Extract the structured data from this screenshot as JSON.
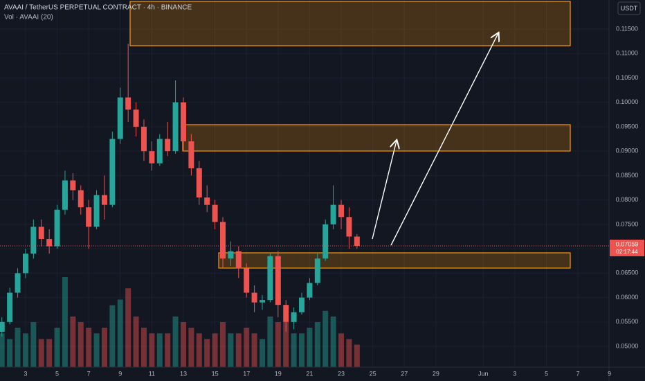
{
  "chart_data": {
    "type": "candlestick",
    "title": "AVAAI / TetherUS PERPETUAL CONTRACT · 4h · BINANCE",
    "volume_title": "Vol · AVAAI (20)",
    "currency": "USDT",
    "x": [
      1.5,
      2,
      2.5,
      3,
      3.5,
      4,
      4.5,
      5,
      5.5,
      6,
      6.5,
      7,
      7.5,
      8,
      8.5,
      9,
      9.5,
      10,
      10.5,
      11,
      11.5,
      12,
      12.5,
      13,
      13.5,
      14,
      14.5,
      15,
      15.5,
      16,
      16.5,
      17,
      17.5,
      18,
      18.5,
      19,
      19.5,
      20,
      20.5,
      21,
      21.5,
      22,
      22.5,
      23,
      23.5,
      24
    ],
    "open": [
      0.053,
      0.055,
      0.061,
      0.065,
      0.069,
      0.0745,
      0.072,
      0.0705,
      0.078,
      0.084,
      0.082,
      0.0785,
      0.0745,
      0.081,
      0.079,
      0.0925,
      0.101,
      0.0985,
      0.095,
      0.09,
      0.0875,
      0.0925,
      0.09,
      0.1,
      0.092,
      0.0865,
      0.0805,
      0.079,
      0.0755,
      0.068,
      0.0695,
      0.066,
      0.061,
      0.059,
      0.0595,
      0.0685,
      0.0585,
      0.055,
      0.057,
      0.06,
      0.063,
      0.068,
      0.075,
      0.079,
      0.0765,
      0.0725
    ],
    "high": [
      0.056,
      0.062,
      0.066,
      0.07,
      0.076,
      0.076,
      0.074,
      0.079,
      0.086,
      0.0855,
      0.083,
      0.08,
      0.082,
      0.085,
      0.094,
      0.103,
      0.112,
      0.1,
      0.0965,
      0.092,
      0.0935,
      0.096,
      0.1045,
      0.101,
      0.0935,
      0.088,
      0.083,
      0.08,
      0.0765,
      0.0715,
      0.0705,
      0.067,
      0.0625,
      0.0605,
      0.069,
      0.0695,
      0.0595,
      0.058,
      0.061,
      0.064,
      0.069,
      0.076,
      0.083,
      0.08,
      0.0785,
      0.073
    ],
    "low": [
      0.052,
      0.0545,
      0.06,
      0.064,
      0.068,
      0.0705,
      0.069,
      0.07,
      0.077,
      0.08,
      0.077,
      0.07,
      0.074,
      0.076,
      0.0785,
      0.0915,
      0.096,
      0.093,
      0.088,
      0.086,
      0.087,
      0.089,
      0.0895,
      0.09,
      0.085,
      0.079,
      0.0775,
      0.074,
      0.066,
      0.0665,
      0.064,
      0.06,
      0.057,
      0.0575,
      0.059,
      0.056,
      0.053,
      0.0535,
      0.0565,
      0.0595,
      0.0625,
      0.0675,
      0.074,
      0.074,
      0.07,
      0.07
    ],
    "close": [
      0.055,
      0.061,
      0.065,
      0.069,
      0.0745,
      0.072,
      0.0705,
      0.078,
      0.084,
      0.082,
      0.0785,
      0.0745,
      0.081,
      0.079,
      0.0925,
      0.101,
      0.0985,
      0.095,
      0.09,
      0.0875,
      0.0925,
      0.09,
      0.1,
      0.092,
      0.0865,
      0.0805,
      0.079,
      0.0755,
      0.068,
      0.0695,
      0.066,
      0.061,
      0.059,
      0.0595,
      0.0685,
      0.0585,
      0.055,
      0.057,
      0.06,
      0.063,
      0.068,
      0.075,
      0.079,
      0.0765,
      0.0725,
      0.07059
    ],
    "volume": [
      30,
      25,
      35,
      30,
      40,
      25,
      25,
      35,
      80,
      45,
      40,
      35,
      30,
      35,
      55,
      60,
      70,
      45,
      35,
      30,
      30,
      30,
      45,
      40,
      35,
      30,
      25,
      30,
      40,
      30,
      30,
      35,
      30,
      25,
      45,
      40,
      40,
      30,
      30,
      35,
      40,
      50,
      45,
      30,
      25,
      20
    ],
    "up_color": "#26a69a",
    "down_color": "#ef5350",
    "last_price": 0.07059,
    "countdown": "02:17:44",
    "xlim": [
      1.38,
      39.97
    ],
    "ylim": [
      0.04575,
      0.12096
    ],
    "xticks": [
      3,
      5,
      7,
      9,
      11,
      13,
      15,
      17,
      19,
      21,
      23,
      25,
      27,
      29,
      {
        "value": 32,
        "label": "Jun"
      },
      {
        "value": 34,
        "label": "3"
      },
      {
        "value": 36,
        "label": "5"
      },
      {
        "value": 38,
        "label": "7"
      },
      {
        "value": 40,
        "label": "9"
      }
    ],
    "yticks": [
      {
        "value": 0.05,
        "label": "0.05000"
      },
      {
        "value": 0.055,
        "label": "0.05500"
      },
      {
        "value": 0.06,
        "label": "0.06000"
      },
      {
        "value": 0.065,
        "label": "0.06500"
      },
      {
        "value": 0.07,
        "label": "0.07000"
      },
      {
        "value": 0.075,
        "label": "0.07500"
      },
      {
        "value": 0.08,
        "label": "0.08000"
      },
      {
        "value": 0.085,
        "label": "0.08500"
      },
      {
        "value": 0.09,
        "label": "0.09000"
      },
      {
        "value": 0.095,
        "label": "0.09500"
      },
      {
        "value": 0.1,
        "label": "0.10000"
      },
      {
        "value": 0.105,
        "label": "0.10500"
      },
      {
        "value": 0.11,
        "label": "0.11000"
      },
      {
        "value": 0.115,
        "label": "0.11500"
      }
    ],
    "grid": true
  }
}
